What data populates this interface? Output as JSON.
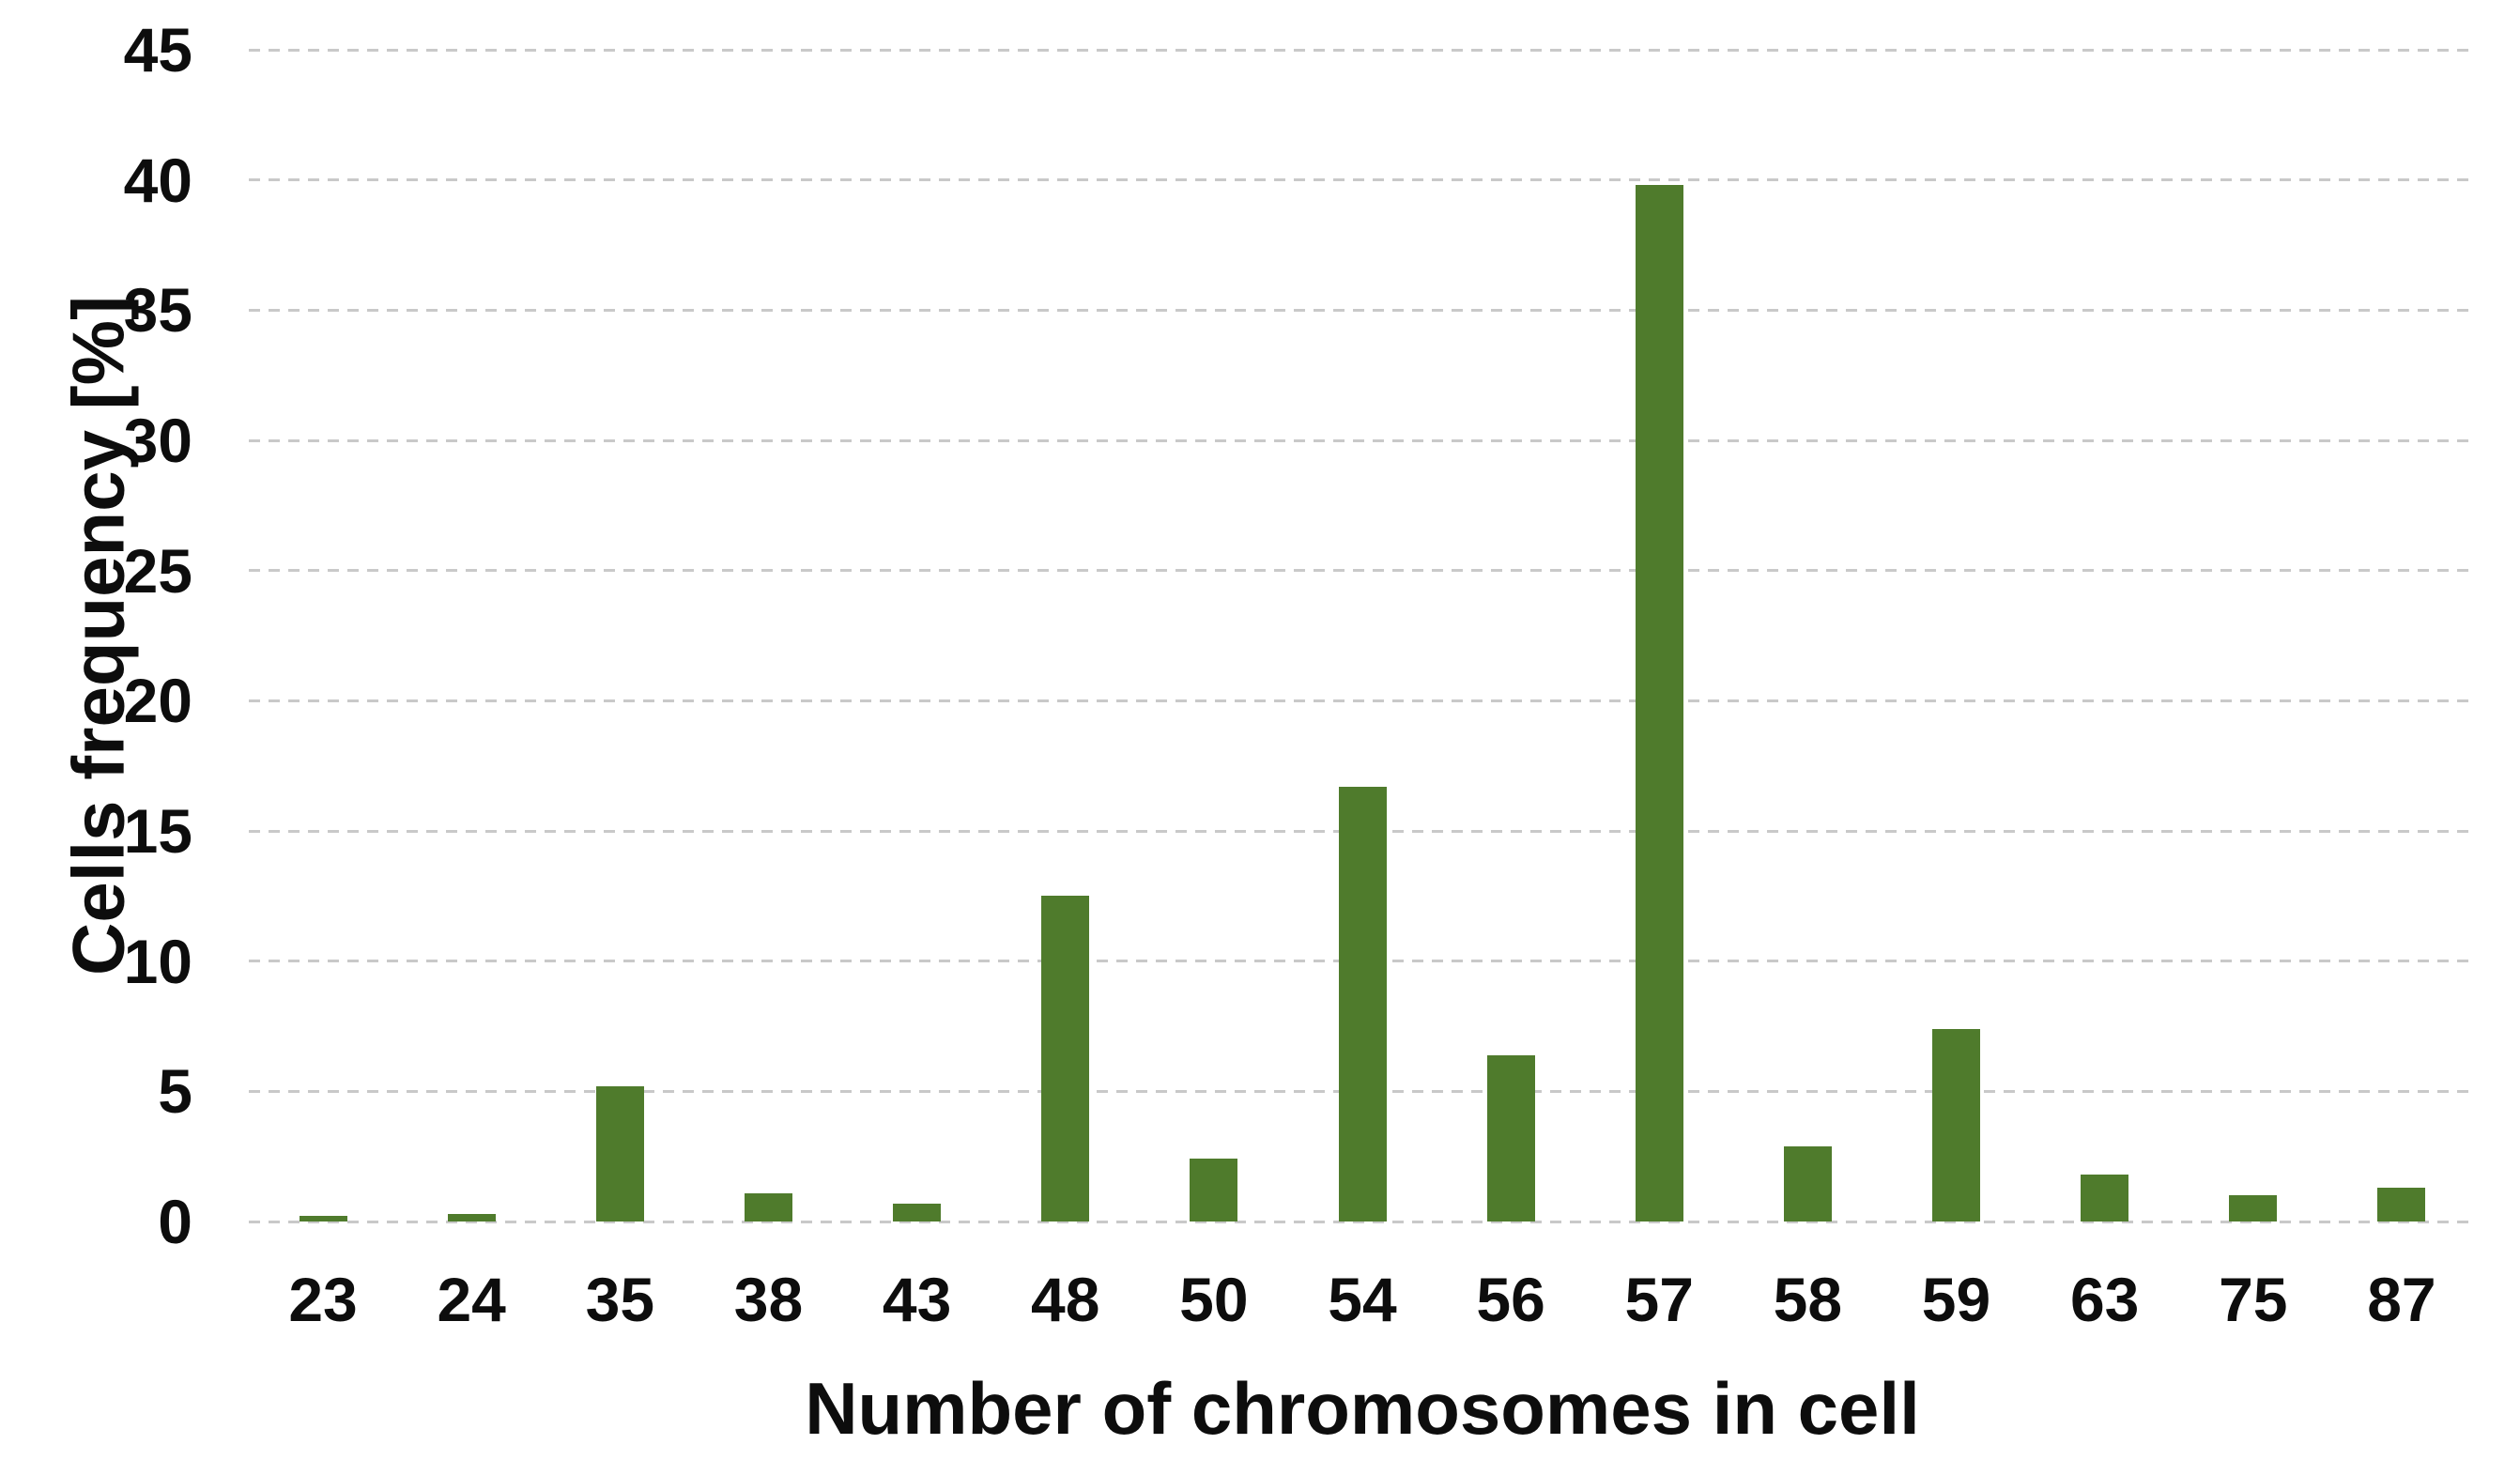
{
  "chart_data": {
    "type": "bar",
    "title": "",
    "categories": [
      "23",
      "24",
      "35",
      "38",
      "43",
      "48",
      "50",
      "54",
      "56",
      "57",
      "58",
      "59",
      "63",
      "75",
      "87"
    ],
    "values": [
      0.2,
      0.3,
      5.2,
      1.1,
      0.7,
      12.5,
      2.4,
      16.7,
      6.4,
      39.8,
      2.9,
      7.4,
      1.8,
      1.0,
      1.3
    ],
    "series_name": "Cells frequency",
    "xlabel": "Number of chromosomes in cell",
    "ylabel": "Cells frequency [%]",
    "ylim": [
      0,
      45
    ],
    "yticks": [
      0,
      5,
      10,
      15,
      20,
      25,
      30,
      35,
      40,
      45
    ],
    "grid": "horizontal-dashed",
    "legend": "none",
    "bar_color": "#4f7b2c",
    "gridline_color": "#c9c9c9",
    "text_color": "#0d0d0d",
    "background_color": "#ffffff"
  }
}
